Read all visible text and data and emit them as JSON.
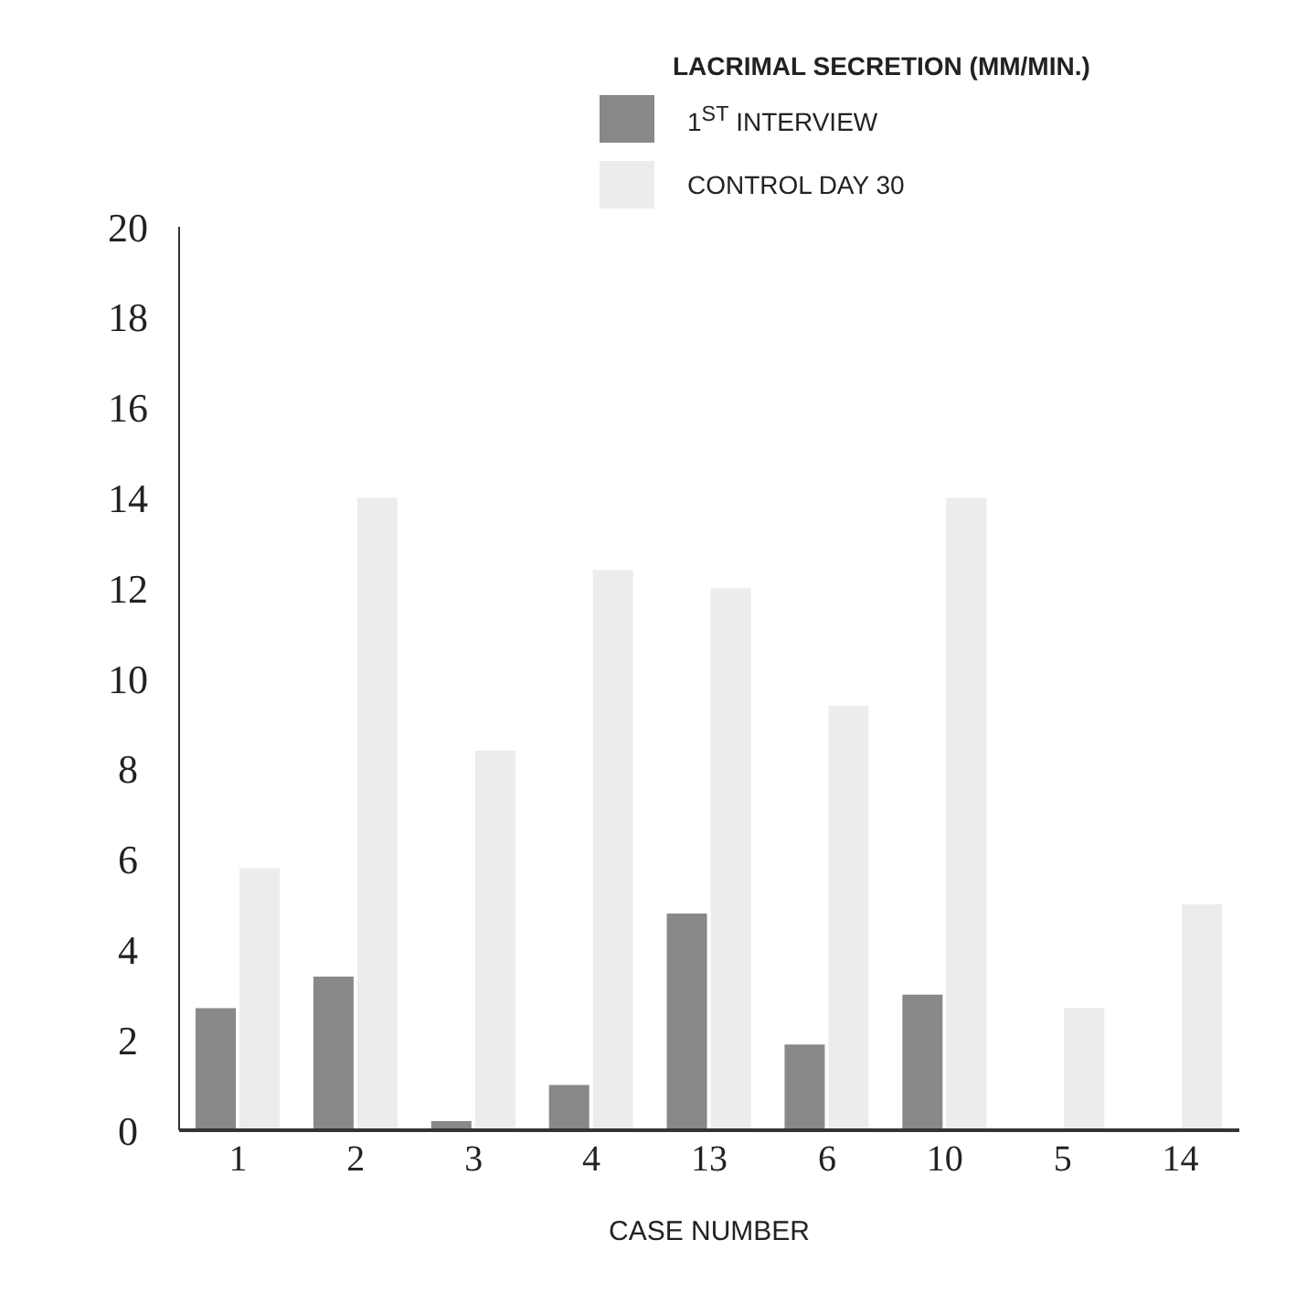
{
  "chart_data": {
    "type": "bar",
    "legend_title": "LACRIMAL SECRETION (MM/MIN.)",
    "xlabel": "CASE NUMBER",
    "categories": [
      "1",
      "2",
      "3",
      "4",
      "13",
      "6",
      "10",
      "5",
      "14"
    ],
    "series": [
      {
        "name": "1$^{ST}$ INTERVIEW",
        "color": "#888888",
        "values": [
          2.7,
          3.4,
          0.2,
          1.0,
          4.8,
          1.9,
          3.0,
          0,
          0
        ]
      },
      {
        "name": "CONTROL DAY 30",
        "color": "#ececec",
        "values": [
          5.8,
          14.0,
          8.4,
          12.4,
          12.0,
          9.4,
          14.0,
          2.7,
          5.0
        ]
      }
    ],
    "ylim": [
      0,
      20
    ],
    "yticks": [
      0,
      2,
      4,
      6,
      8,
      10,
      12,
      14,
      16,
      18,
      20
    ],
    "grid": false,
    "legend": "top right"
  }
}
